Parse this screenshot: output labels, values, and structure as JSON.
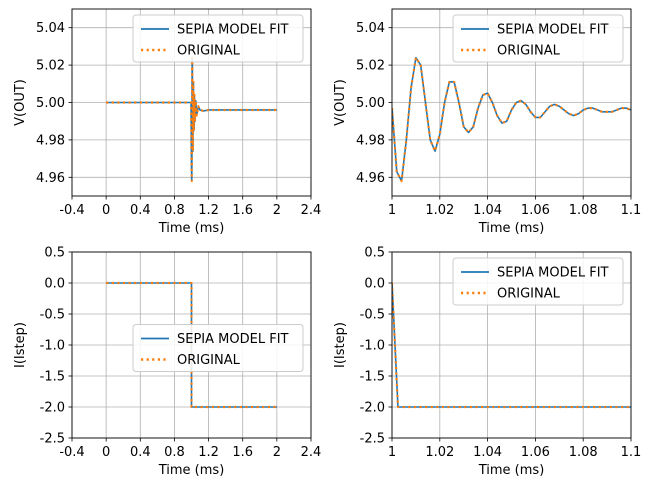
{
  "colors": {
    "fit": "#1f77b4",
    "original": "#ff7f0e",
    "grid": "#b0b0b0"
  },
  "chart_data": [
    {
      "type": "line",
      "xlabel": "Time (ms)",
      "ylabel": "V(OUT)",
      "xlim": [
        -0.4,
        2.4
      ],
      "ylim": [
        4.95,
        5.05
      ],
      "xticks": [
        -0.4,
        0,
        0.4,
        0.8,
        1.2,
        1.6,
        2,
        2.4
      ],
      "xtick_labels": [
        "-0.4",
        "0",
        "0.4",
        "0.8",
        "1.2",
        "1.6",
        "2",
        "2.4"
      ],
      "yticks": [
        4.96,
        4.98,
        5.0,
        5.02,
        5.04
      ],
      "ytick_labels": [
        "4.96",
        "4.98",
        "5.00",
        "5.02",
        "5.04"
      ],
      "grid": true,
      "legend_position": "top-right",
      "series": [
        {
          "name": "SEPIA MODEL FIT",
          "style": "solid",
          "x": [
            0,
            0.995,
            1.0,
            1.003,
            1.005,
            1.008,
            1.01,
            1.013,
            1.016,
            1.019,
            1.022,
            1.026,
            1.03,
            1.034,
            1.04,
            1.05,
            1.06,
            1.08,
            1.1,
            1.14,
            1.2,
            1.3,
            2
          ],
          "y": [
            5.0,
            5.0,
            4.965,
            4.958,
            4.975,
            5.024,
            5.02,
            4.982,
            4.974,
            5.005,
            5.011,
            4.985,
            4.986,
            5.004,
            4.99,
            5.001,
            4.993,
            4.998,
            4.996,
            4.9955,
            4.996,
            4.996,
            4.996
          ]
        },
        {
          "name": "ORIGINAL",
          "style": "dotted",
          "x": [
            0,
            0.995,
            1.0,
            1.003,
            1.005,
            1.008,
            1.01,
            1.013,
            1.016,
            1.019,
            1.022,
            1.026,
            1.03,
            1.034,
            1.04,
            1.05,
            1.06,
            1.08,
            1.1,
            1.14,
            1.2,
            1.3,
            2
          ],
          "y": [
            5.0,
            5.0,
            4.965,
            4.958,
            4.975,
            5.024,
            5.02,
            4.982,
            4.974,
            5.005,
            5.011,
            4.985,
            4.986,
            5.004,
            4.99,
            5.001,
            4.993,
            4.998,
            4.996,
            4.9955,
            4.996,
            4.996,
            4.996
          ]
        }
      ]
    },
    {
      "type": "line",
      "xlabel": "Time (ms)",
      "ylabel": "V(OUT)",
      "xlim": [
        1.0,
        1.1
      ],
      "ylim": [
        4.95,
        5.05
      ],
      "xticks": [
        1.0,
        1.02,
        1.04,
        1.06,
        1.08,
        1.1
      ],
      "xtick_labels": [
        "1",
        "1.02",
        "1.04",
        "1.06",
        "1.08",
        "1.1"
      ],
      "yticks": [
        4.96,
        4.98,
        5.0,
        5.02,
        5.04
      ],
      "ytick_labels": [
        "4.96",
        "4.98",
        "5.00",
        "5.02",
        "5.04"
      ],
      "grid": true,
      "legend_position": "top-right",
      "series": [
        {
          "name": "SEPIA MODEL FIT",
          "style": "solid",
          "x": [
            1.0,
            1.002,
            1.004,
            1.006,
            1.008,
            1.01,
            1.012,
            1.014,
            1.016,
            1.018,
            1.02,
            1.022,
            1.024,
            1.026,
            1.028,
            1.03,
            1.032,
            1.034,
            1.036,
            1.038,
            1.04,
            1.042,
            1.044,
            1.046,
            1.048,
            1.05,
            1.052,
            1.054,
            1.056,
            1.058,
            1.06,
            1.062,
            1.064,
            1.066,
            1.068,
            1.07,
            1.072,
            1.074,
            1.076,
            1.078,
            1.08,
            1.082,
            1.084,
            1.086,
            1.088,
            1.09,
            1.092,
            1.094,
            1.096,
            1.098,
            1.1
          ],
          "y": [
            4.997,
            4.963,
            4.958,
            4.98,
            5.008,
            5.024,
            5.02,
            5.0,
            4.98,
            4.974,
            4.983,
            5.0,
            5.011,
            5.011,
            5.0,
            4.987,
            4.984,
            4.987,
            4.997,
            5.004,
            5.005,
            5.0,
            4.993,
            4.989,
            4.99,
            4.996,
            5.0,
            5.001,
            4.999,
            4.995,
            4.992,
            4.992,
            4.995,
            4.998,
            4.999,
            4.998,
            4.996,
            4.994,
            4.993,
            4.994,
            4.996,
            4.997,
            4.997,
            4.996,
            4.995,
            4.995,
            4.995,
            4.996,
            4.997,
            4.997,
            4.996
          ]
        },
        {
          "name": "ORIGINAL",
          "style": "dotted",
          "x": [
            1.0,
            1.002,
            1.004,
            1.006,
            1.008,
            1.01,
            1.012,
            1.014,
            1.016,
            1.018,
            1.02,
            1.022,
            1.024,
            1.026,
            1.028,
            1.03,
            1.032,
            1.034,
            1.036,
            1.038,
            1.04,
            1.042,
            1.044,
            1.046,
            1.048,
            1.05,
            1.052,
            1.054,
            1.056,
            1.058,
            1.06,
            1.062,
            1.064,
            1.066,
            1.068,
            1.07,
            1.072,
            1.074,
            1.076,
            1.078,
            1.08,
            1.082,
            1.084,
            1.086,
            1.088,
            1.09,
            1.092,
            1.094,
            1.096,
            1.098,
            1.1
          ],
          "y": [
            4.997,
            4.963,
            4.958,
            4.98,
            5.008,
            5.024,
            5.02,
            5.0,
            4.98,
            4.974,
            4.983,
            5.0,
            5.011,
            5.011,
            5.0,
            4.987,
            4.984,
            4.987,
            4.997,
            5.004,
            5.005,
            5.0,
            4.993,
            4.989,
            4.99,
            4.996,
            5.0,
            5.001,
            4.999,
            4.995,
            4.992,
            4.992,
            4.995,
            4.998,
            4.999,
            4.998,
            4.996,
            4.994,
            4.993,
            4.994,
            4.996,
            4.997,
            4.997,
            4.996,
            4.995,
            4.995,
            4.995,
            4.996,
            4.997,
            4.997,
            4.996
          ]
        }
      ]
    },
    {
      "type": "line",
      "xlabel": "Time (ms)",
      "ylabel": "I(Istep)",
      "xlim": [
        -0.4,
        2.4
      ],
      "ylim": [
        -2.5,
        0.5
      ],
      "xticks": [
        -0.4,
        0,
        0.4,
        0.8,
        1.2,
        1.6,
        2,
        2.4
      ],
      "xtick_labels": [
        "-0.4",
        "0",
        "0.4",
        "0.8",
        "1.2",
        "1.6",
        "2",
        "2.4"
      ],
      "yticks": [
        -2.5,
        -2.0,
        -1.5,
        -1.0,
        -0.5,
        0.0,
        0.5
      ],
      "ytick_labels": [
        "-2.5",
        "-2.0",
        "-1.5",
        "-1.0",
        "-0.5",
        "0.0",
        "0.5"
      ],
      "grid": true,
      "legend_position": "center-right",
      "series": [
        {
          "name": "SEPIA MODEL FIT",
          "style": "solid",
          "x": [
            0,
            1.0,
            1.0,
            2.0
          ],
          "y": [
            0,
            0,
            -2,
            -2
          ]
        },
        {
          "name": "ORIGINAL",
          "style": "dotted",
          "x": [
            0,
            1.0,
            1.0,
            2.0
          ],
          "y": [
            0,
            0,
            -2,
            -2
          ]
        }
      ]
    },
    {
      "type": "line",
      "xlabel": "Time (ms)",
      "ylabel": "I(Istep)",
      "xlim": [
        1.0,
        1.1
      ],
      "ylim": [
        -2.5,
        0.5
      ],
      "xticks": [
        1.0,
        1.02,
        1.04,
        1.06,
        1.08,
        1.1
      ],
      "xtick_labels": [
        "1",
        "1.02",
        "1.04",
        "1.06",
        "1.08",
        "1.1"
      ],
      "yticks": [
        -2.5,
        -2.0,
        -1.5,
        -1.0,
        -0.5,
        0.0,
        0.5
      ],
      "ytick_labels": [
        "-2.5",
        "-2.0",
        "-1.5",
        "-1.0",
        "-0.5",
        "0.0",
        "0.5"
      ],
      "grid": true,
      "legend_position": "top-right",
      "series": [
        {
          "name": "SEPIA MODEL FIT",
          "style": "solid",
          "x": [
            1.0,
            1.0025,
            1.1
          ],
          "y": [
            0.0,
            -2.0,
            -2.0
          ]
        },
        {
          "name": "ORIGINAL",
          "style": "dotted",
          "x": [
            1.0,
            1.0025,
            1.1
          ],
          "y": [
            0.0,
            -2.0,
            -2.0
          ]
        }
      ]
    }
  ]
}
